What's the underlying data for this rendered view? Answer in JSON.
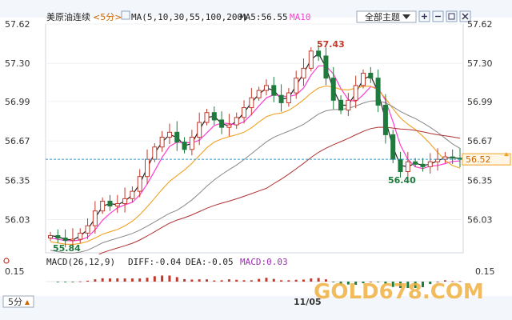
{
  "header": {
    "instrument": "美原油连续",
    "period_label": "<5分>",
    "ma_legend": "MA(5,10,30,55,100,200)",
    "ma5_label": "MA5:56.55",
    "ma10_label": "MA10",
    "theme_dropdown": "全部主题",
    "icons": [
      "zoom-in-icon",
      "zoom-out-icon",
      "crosshair-icon",
      "close-icon"
    ]
  },
  "colors": {
    "up": "#c0392b",
    "down": "#1e7b3c",
    "ma5": "#222222",
    "ma10": "#ff3bd0",
    "ma30": "#f0a020",
    "ma55": "#888888",
    "ma100": "#b03030",
    "ma200": "#444444",
    "last_price_line": "#3399cc",
    "last_price_tag": "#f0a020",
    "macd": "#9a2fb0"
  },
  "chart_data": {
    "type": "candlestick",
    "y_ticks": [
      "57.62",
      "57.30",
      "56.99",
      "56.67",
      "56.35",
      "56.03"
    ],
    "ylim": [
      55.76,
      57.62
    ],
    "annotations": {
      "high": "57.43",
      "low_left": "55.84",
      "low_right": "56.40"
    },
    "last_price": "56.52",
    "x_tick": "11/05",
    "macd_label": "MACD(26,12,9)",
    "macd_values": {
      "diff": "DIFF:-0.04",
      "dea": "DEA:-0.05",
      "macd": "MACD:0.03"
    },
    "macd_tick": "0.15",
    "period_button": "5分",
    "watermark": "GOLD678.COM",
    "series_shape": {
      "close_path": [
        55.9,
        55.88,
        55.86,
        55.87,
        55.92,
        55.98,
        56.1,
        56.18,
        56.14,
        56.16,
        56.2,
        56.26,
        56.38,
        56.52,
        56.62,
        56.7,
        56.74,
        56.66,
        56.6,
        56.7,
        56.82,
        56.9,
        56.84,
        56.78,
        56.8,
        56.86,
        56.94,
        57.02,
        57.08,
        57.12,
        57.04,
        56.98,
        57.06,
        57.18,
        57.26,
        57.4,
        57.36,
        57.18,
        57.0,
        56.92,
        57.0,
        57.12,
        57.22,
        57.18,
        56.96,
        56.72,
        56.52,
        56.42,
        56.5,
        56.48,
        56.46,
        56.5,
        56.52,
        56.54,
        56.53,
        56.52
      ]
    }
  }
}
